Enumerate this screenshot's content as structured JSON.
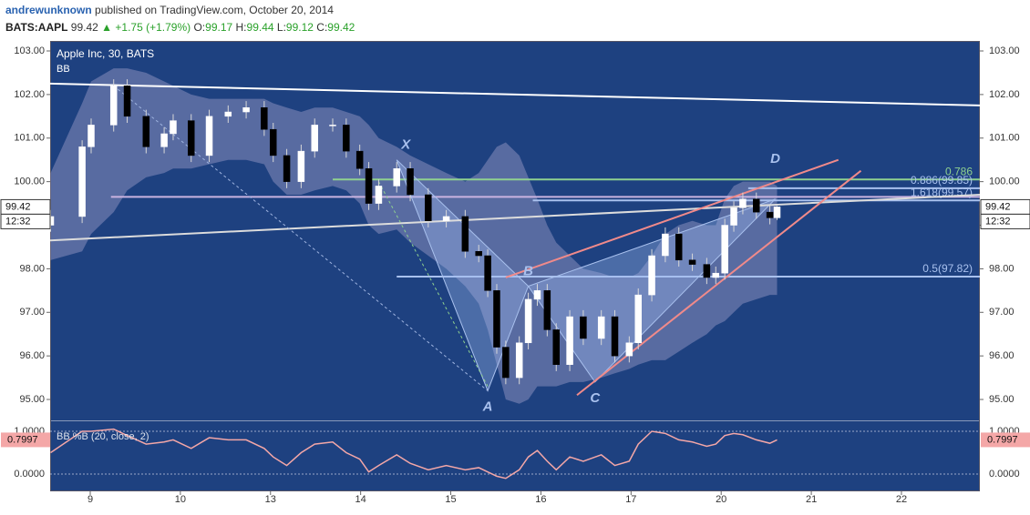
{
  "header": {
    "author": "andrewunknown",
    "published": "published on TradingView.com, October 20, 2014",
    "symbol": "BATS:AAPL",
    "arrow": "▲",
    "change": "+1.75 (+1.79%)",
    "o": "O:",
    "h": "H:",
    "l": "L:",
    "c": "C:"
  },
  "chart_data": {
    "type": "candlestick",
    "title": "Apple Inc, 30, BATS",
    "overlay": "BB",
    "indicator_title": "BB %B (20, close, 2)",
    "time_tag": "12:32",
    "x": [
      -0.44,
      -0.09,
      0.01,
      0.26,
      0.41,
      0.62,
      0.82,
      0.92,
      1.12,
      1.32,
      1.53,
      1.73,
      1.93,
      2.03,
      2.18,
      2.34,
      2.49,
      2.69,
      2.84,
      2.99,
      3.09,
      3.2,
      3.4,
      3.55,
      3.75,
      3.95,
      4.16,
      4.31,
      4.41,
      4.51,
      4.61,
      4.76,
      4.86,
      4.96,
      5.07,
      5.17,
      5.32,
      5.47,
      5.67,
      5.82,
      5.98,
      6.08,
      6.23,
      6.38,
      6.53,
      6.68,
      6.84,
      6.94,
      7.04,
      7.14,
      7.24,
      7.39,
      7.54,
      7.62
    ],
    "open": [
      99.0,
      99.2,
      100.8,
      101.3,
      102.2,
      101.5,
      100.8,
      101.1,
      101.4,
      100.6,
      101.5,
      101.6,
      101.7,
      101.2,
      100.6,
      100.0,
      100.7,
      101.3,
      101.3,
      100.7,
      100.3,
      99.5,
      99.9,
      100.3,
      99.7,
      99.1,
      99.2,
      98.4,
      98.3,
      97.5,
      96.2,
      95.5,
      96.3,
      97.3,
      97.5,
      96.6,
      95.8,
      96.9,
      96.4,
      96.9,
      96.0,
      96.3,
      97.4,
      98.3,
      98.8,
      98.2,
      98.1,
      97.8,
      97.9,
      99.0,
      99.4,
      99.6,
      99.3,
      99.17
    ],
    "high": [
      99.35,
      100.95,
      101.45,
      102.35,
      102.35,
      101.65,
      101.25,
      101.55,
      101.55,
      101.65,
      101.75,
      101.85,
      101.85,
      101.35,
      100.75,
      100.85,
      101.45,
      101.45,
      101.45,
      100.85,
      100.45,
      100.05,
      100.45,
      100.45,
      99.85,
      99.35,
      99.35,
      98.55,
      98.45,
      97.65,
      96.35,
      96.45,
      97.45,
      97.65,
      97.65,
      96.75,
      97.05,
      97.05,
      97.05,
      97.05,
      96.45,
      97.55,
      98.45,
      98.95,
      98.95,
      98.35,
      98.25,
      98.05,
      99.15,
      99.55,
      99.75,
      99.75,
      99.45,
      99.44
    ],
    "low": [
      98.85,
      99.05,
      100.65,
      101.15,
      101.35,
      100.65,
      100.65,
      100.95,
      100.45,
      100.45,
      101.35,
      101.45,
      101.05,
      100.45,
      99.85,
      99.85,
      100.55,
      101.15,
      100.55,
      100.15,
      99.35,
      99.35,
      99.75,
      99.55,
      98.95,
      98.95,
      98.25,
      98.15,
      97.35,
      96.05,
      95.35,
      95.35,
      96.15,
      97.15,
      96.45,
      95.65,
      95.65,
      96.25,
      96.25,
      95.85,
      95.85,
      96.15,
      97.25,
      98.15,
      98.05,
      97.95,
      97.65,
      97.65,
      97.75,
      98.85,
      99.25,
      99.15,
      99.02,
      99.12
    ],
    "close": [
      99.2,
      100.8,
      101.3,
      102.2,
      101.5,
      100.8,
      101.1,
      101.4,
      100.6,
      101.5,
      101.6,
      101.7,
      101.2,
      100.6,
      100.0,
      100.7,
      101.3,
      101.3,
      100.7,
      100.3,
      99.5,
      99.9,
      100.3,
      99.7,
      99.1,
      99.2,
      98.4,
      98.3,
      97.5,
      96.2,
      95.5,
      96.3,
      97.3,
      97.5,
      96.6,
      95.8,
      96.9,
      96.4,
      96.9,
      96.0,
      96.3,
      97.4,
      98.3,
      98.8,
      98.2,
      98.1,
      97.8,
      97.9,
      99.0,
      99.4,
      99.6,
      99.3,
      99.17,
      99.42
    ],
    "bb_upper": [
      100.2,
      101.8,
      102.3,
      102.6,
      102.6,
      102.5,
      102.3,
      102.2,
      102.0,
      101.9,
      101.9,
      101.9,
      101.9,
      101.8,
      101.7,
      101.6,
      101.7,
      101.7,
      101.6,
      101.5,
      101.3,
      101.0,
      100.8,
      100.6,
      100.4,
      100.2,
      100.0,
      100.2,
      100.5,
      100.8,
      100.9,
      100.6,
      100.1,
      99.6,
      99.0,
      98.6,
      98.3,
      98.0,
      97.9,
      97.8,
      97.8,
      97.9,
      98.3,
      98.8,
      99.0,
      99.1,
      99.0,
      99.0,
      99.6,
      99.9,
      100.0,
      100.0,
      100.0,
      99.9
    ],
    "bb_lower": [
      98.2,
      98.4,
      98.8,
      99.3,
      99.8,
      100.1,
      100.2,
      100.3,
      100.3,
      100.4,
      100.5,
      100.5,
      100.4,
      100.0,
      99.7,
      99.7,
      99.8,
      99.9,
      99.8,
      99.5,
      99.0,
      98.8,
      98.9,
      98.6,
      98.3,
      98.0,
      97.6,
      97.2,
      96.6,
      95.8,
      95.0,
      94.9,
      95.0,
      95.3,
      95.3,
      95.3,
      95.4,
      95.4,
      95.5,
      95.6,
      95.7,
      95.8,
      95.9,
      95.9,
      96.1,
      96.3,
      96.5,
      96.7,
      96.8,
      97.0,
      97.2,
      97.3,
      97.4,
      97.4
    ],
    "percent_b": [
      0.5,
      1.0,
      1.0,
      1.05,
      0.9,
      0.7,
      0.75,
      0.8,
      0.6,
      0.85,
      0.8,
      0.8,
      0.6,
      0.4,
      0.2,
      0.5,
      0.7,
      0.75,
      0.5,
      0.35,
      0.05,
      0.2,
      0.45,
      0.25,
      0.1,
      0.2,
      0.1,
      0.15,
      0.05,
      -0.05,
      -0.1,
      0.1,
      0.4,
      0.55,
      0.3,
      0.1,
      0.4,
      0.3,
      0.45,
      0.2,
      0.3,
      0.7,
      1.0,
      0.95,
      0.8,
      0.75,
      0.65,
      0.7,
      0.9,
      0.95,
      0.92,
      0.8,
      0.72,
      0.7997
    ],
    "percent_b_color": "#f4a7a7",
    "xlim": [
      -0.445,
      9.87
    ],
    "xticks": [
      {
        "value": 0,
        "label": "9"
      },
      {
        "value": 1,
        "label": "10"
      },
      {
        "value": 2,
        "label": "13"
      },
      {
        "value": 3,
        "label": "14"
      },
      {
        "value": 4,
        "label": "15"
      },
      {
        "value": 5,
        "label": "16"
      },
      {
        "value": 6,
        "label": "17"
      },
      {
        "value": 7,
        "label": "20"
      },
      {
        "value": 8,
        "label": "21"
      },
      {
        "value": 9,
        "label": "22"
      }
    ],
    "ylim": [
      94.52,
      103.23
    ],
    "yticks": [
      {
        "value": 95,
        "label": "95.00"
      },
      {
        "value": 96,
        "label": "96.00"
      },
      {
        "value": 97,
        "label": "97.00"
      },
      {
        "value": 98,
        "label": "98.00"
      },
      {
        "value": 99,
        "label": "99.00"
      },
      {
        "value": 100,
        "label": "100.00"
      },
      {
        "value": 101,
        "label": "101.00"
      },
      {
        "value": 102,
        "label": "102.00"
      },
      {
        "value": 103,
        "label": "103.00"
      }
    ],
    "y2lim": [
      -0.404,
      1.234
    ],
    "y2ticks": [
      {
        "value": 0,
        "label": "0.0000"
      },
      {
        "value": 1,
        "label": "1.0000"
      }
    ],
    "trend_lines": [
      {
        "x": [
          -0.445,
          9.87
        ],
        "y": [
          102.25,
          101.75
        ],
        "color": "#ffffff",
        "dashed": false
      },
      {
        "x": [
          -0.445,
          9.87
        ],
        "y": [
          98.65,
          99.7
        ],
        "color": "#dcdcdc",
        "dashed": false
      },
      {
        "x": [
          4.61,
          8.3
        ],
        "y": [
          97.8,
          100.5
        ],
        "color": "#f08a8a",
        "dashed": false
      },
      {
        "x": [
          5.4,
          8.55
        ],
        "y": [
          95.1,
          100.25
        ],
        "color": "#f08a8a",
        "dashed": false
      },
      {
        "x": [
          0.26,
          4.41
        ],
        "y": [
          102.2,
          95.2
        ],
        "color": "#9fb4e0",
        "dashed": true
      },
      {
        "x": [
          3.2,
          4.41
        ],
        "y": [
          100.0,
          95.3
        ],
        "color": "#8fd18f",
        "dashed": true
      }
    ],
    "levels": [
      {
        "value": 99.65,
        "x_start": 0.23,
        "color": "#c9b3e0"
      },
      {
        "label": "0.786",
        "value": 100.05,
        "x_start": 2.69,
        "color": "#8fd18f"
      },
      {
        "label": "0.886(99.85)",
        "value": 99.85,
        "x_start": 7.3,
        "color": "#a9c1ee"
      },
      {
        "label": "1.618(99.57)",
        "value": 99.57,
        "x_start": 4.91,
        "color": "#a9c1ee"
      },
      {
        "label": "0.5(97.82)",
        "value": 97.82,
        "x_start": 3.4,
        "color": "#a9c1ee"
      }
    ],
    "pattern": [
      {
        "label": "X",
        "x": 3.4,
        "y": 100.5
      },
      {
        "label": "A",
        "x": 4.41,
        "y": 95.2
      },
      {
        "label": "B",
        "x": 4.86,
        "y": 97.6
      },
      {
        "label": "C",
        "x": 5.6,
        "y": 95.4
      },
      {
        "label": "D",
        "x": 7.6,
        "y": 99.6
      }
    ]
  }
}
